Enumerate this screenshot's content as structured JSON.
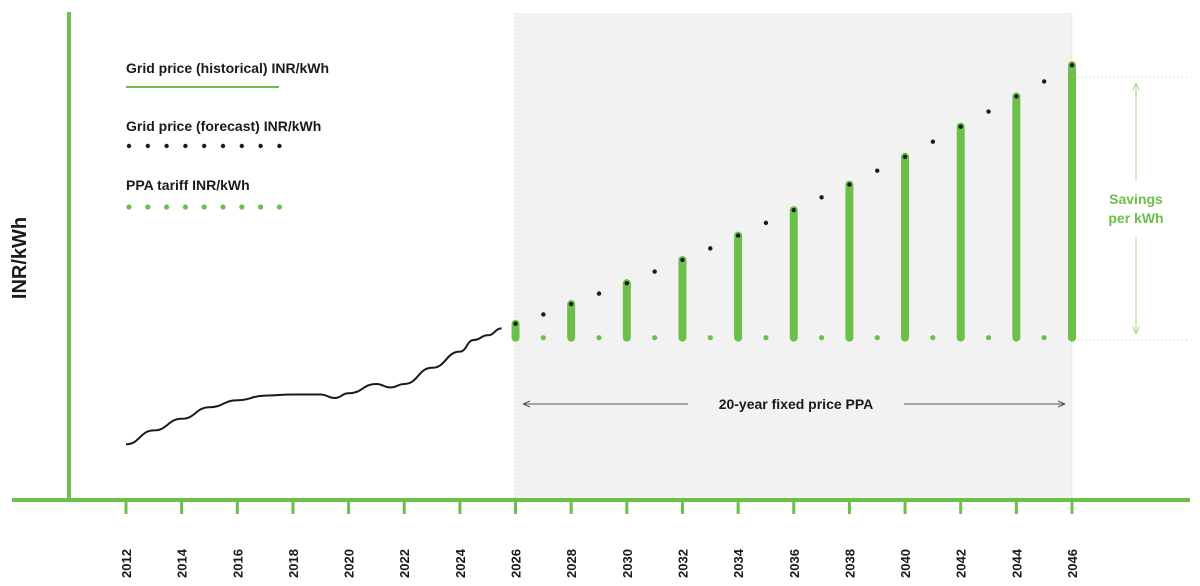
{
  "colors": {
    "green": "#6cc04a",
    "dark": "#1a1a1a",
    "shade": "#f2f2f2"
  },
  "chart_data": {
    "type": "line",
    "ylabel": "INR/kWh",
    "x_ticks": [
      "2012",
      "2014",
      "2016",
      "2018",
      "2020",
      "2022",
      "2024",
      "2026",
      "2028",
      "2030",
      "2032",
      "2034",
      "2036",
      "2038",
      "2040",
      "2042",
      "2044",
      "2046"
    ],
    "legend": [
      {
        "label": "Grid price (historical) INR/kWh",
        "style": "solid-green"
      },
      {
        "label": "Grid price (forecast) INR/kWh",
        "style": "dotted-black"
      },
      {
        "label": "PPA tariff INR/kWh",
        "style": "dotted-green"
      }
    ],
    "series": [
      {
        "name": "Grid price (historical) INR/kWh",
        "x": [
          2012,
          2013,
          2014,
          2015,
          2016,
          2017,
          2018,
          2019,
          2019.5,
          2020,
          2021,
          2021.5,
          2022,
          2023,
          2024,
          2024.5,
          2025,
          2025.5
        ],
        "y": [
          0.4,
          1.0,
          1.5,
          2.0,
          2.3,
          2.5,
          2.55,
          2.55,
          2.4,
          2.6,
          3.0,
          2.85,
          3.0,
          3.7,
          4.4,
          4.9,
          5.1,
          5.4
        ]
      },
      {
        "name": "Grid price (forecast) INR/kWh",
        "x": [
          2026,
          2027,
          2028,
          2029,
          2030,
          2031,
          2032,
          2033,
          2034,
          2035,
          2036,
          2037,
          2038,
          2039,
          2040,
          2041,
          2042,
          2043,
          2044,
          2045,
          2046
        ],
        "y": [
          5.6,
          6.0,
          6.45,
          6.9,
          7.35,
          7.85,
          8.35,
          8.85,
          9.4,
          9.95,
          10.5,
          11.05,
          11.6,
          12.2,
          12.8,
          13.45,
          14.1,
          14.75,
          15.4,
          16.05,
          16.75
        ]
      },
      {
        "name": "PPA tariff INR/kWh",
        "x": [
          2026,
          2027,
          2028,
          2029,
          2030,
          2031,
          2032,
          2033,
          2034,
          2035,
          2036,
          2037,
          2038,
          2039,
          2040,
          2041,
          2042,
          2043,
          2044,
          2045,
          2046
        ],
        "y": [
          5.0,
          5.0,
          5.0,
          5.0,
          5.0,
          5.0,
          5.0,
          5.0,
          5.0,
          5.0,
          5.0,
          5.0,
          5.0,
          5.0,
          5.0,
          5.0,
          5.0,
          5.0,
          5.0,
          5.0,
          5.0
        ]
      }
    ],
    "savings_bars_x": [
      2026,
      2028,
      2030,
      2032,
      2034,
      2036,
      2038,
      2040,
      2042,
      2044,
      2046
    ],
    "xlim": [
      2010,
      2050
    ],
    "ylim": [
      -2,
      19
    ],
    "annotations": {
      "ppa_period": "20-year fixed price PPA",
      "savings_line1": "Savings",
      "savings_line2": "per kWh"
    },
    "grid": false
  }
}
